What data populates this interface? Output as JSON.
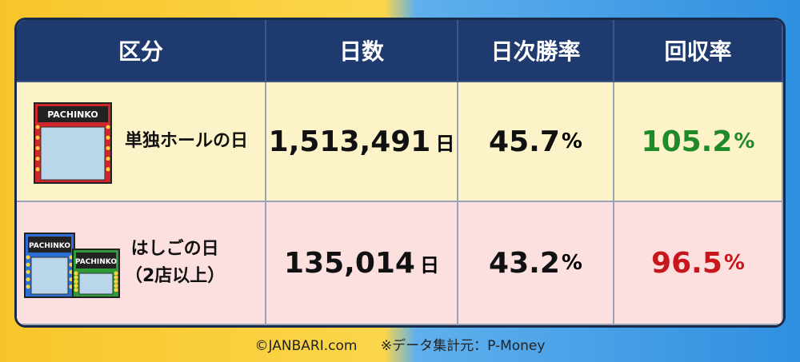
{
  "table": {
    "header": [
      "区分",
      "日数",
      "日次勝率",
      "回収率"
    ],
    "rows": [
      {
        "icon_labels": [
          "PACHINKO"
        ],
        "label": [
          "単独ホールの日"
        ],
        "days": {
          "value": "1,513,491",
          "unit": "日"
        },
        "win_rate": {
          "value": "45.7",
          "unit": "%"
        },
        "recovery": {
          "value": "105.2",
          "unit": "%"
        }
      },
      {
        "icon_labels": [
          "PACHINKO",
          "PACHINKO"
        ],
        "label": [
          "はしごの日",
          "（2店以上）"
        ],
        "days": {
          "value": "135,014",
          "unit": "日"
        },
        "win_rate": {
          "value": "43.2",
          "unit": "%"
        },
        "recovery": {
          "value": "96.5",
          "unit": "%"
        }
      }
    ]
  },
  "footer": {
    "copyright": "©JANBARI.com",
    "source": "※データ集計元：P-Money"
  }
}
